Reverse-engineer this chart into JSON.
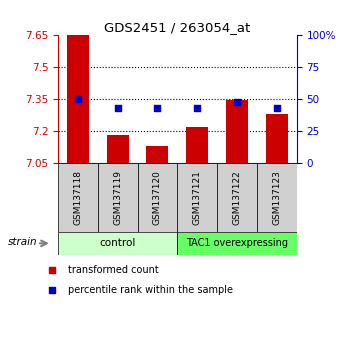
{
  "title": "GDS2451 / 263054_at",
  "samples": [
    "GSM137118",
    "GSM137119",
    "GSM137120",
    "GSM137121",
    "GSM137122",
    "GSM137123"
  ],
  "transformed_count": [
    7.65,
    7.18,
    7.13,
    7.22,
    7.345,
    7.28
  ],
  "percentile_rank": [
    50,
    43,
    43,
    43,
    48,
    43
  ],
  "ymin": 7.05,
  "ymax": 7.65,
  "yticks": [
    7.05,
    7.2,
    7.35,
    7.5,
    7.65
  ],
  "ytick_labels": [
    "7.05",
    "7.2",
    "7.35",
    "7.5",
    "7.65"
  ],
  "right_yticks": [
    0,
    25,
    50,
    75,
    100
  ],
  "right_ytick_labels": [
    "0",
    "25",
    "50",
    "75",
    "100%"
  ],
  "bar_color": "#cc0000",
  "dot_color": "#0000cc",
  "bar_width": 0.55,
  "control_color": "#ccffcc",
  "tac1_color": "#66ff66",
  "strain_label": "strain",
  "legend_items": [
    {
      "color": "#cc0000",
      "label": "transformed count"
    },
    {
      "color": "#0000cc",
      "label": "percentile rank within the sample"
    }
  ],
  "left_tick_color": "#cc0000",
  "right_tick_color": "#0000cc"
}
